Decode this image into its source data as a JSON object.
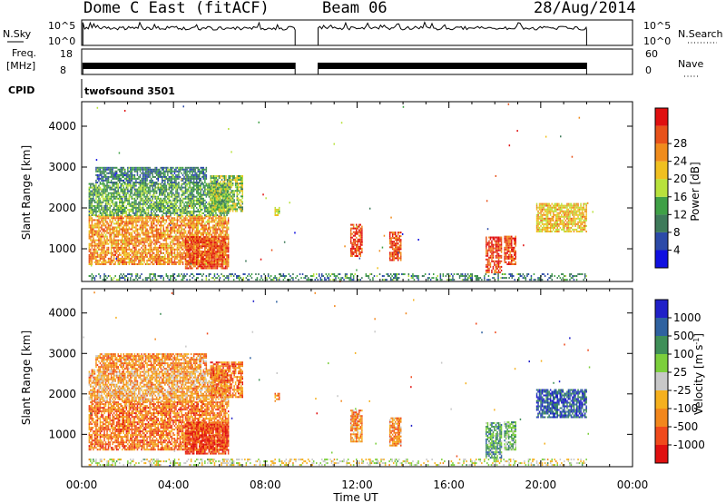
{
  "header": {
    "station": "Dome C East (fitACF)",
    "beam": "Beam 06",
    "date": "28/Aug/2014"
  },
  "aux": {
    "nsky_label": "N.Sky",
    "nsky_ticks": [
      "10^5",
      "10^0"
    ],
    "freq_label_1": "Freq.",
    "freq_label_2": "[MHz]",
    "freq_ticks": [
      "18",
      "8"
    ],
    "nsearch_label": "N.Search",
    "nsearch_ticks": [
      "10^5",
      "10^0"
    ],
    "nave_label": "Nave",
    "nave_ticks": [
      "60",
      "0"
    ],
    "cpid_label": "CPID",
    "cpid_value": "twofsound 3501"
  },
  "xaxis": {
    "title": "Time UT",
    "ticks": [
      "00:00",
      "04:00",
      "08:00",
      "12:00",
      "16:00",
      "20:00",
      "00:00"
    ]
  },
  "colors": {
    "power_scale": [
      "#1010e0",
      "#2c4aa8",
      "#3e7a5a",
      "#3fa046",
      "#b8e23c",
      "#f0c020",
      "#f08c1c",
      "#e8521a",
      "#e01010"
    ],
    "velocity_scale": [
      "#e01010",
      "#f04a1c",
      "#f2871c",
      "#f5b01e",
      "#c8c8c8",
      "#7ccf3c",
      "#3f8f58",
      "#2f62a0",
      "#2020c8"
    ]
  },
  "chart_data": [
    {
      "type": "heatmap",
      "panel": "power",
      "xlabel": "",
      "ylabel": "Slant Range [km]",
      "xlim": [
        0,
        24
      ],
      "ylim": [
        200,
        4600
      ],
      "yticks": [
        1000,
        2000,
        3000,
        4000
      ],
      "colorbar": {
        "label": "Power [dB]",
        "ticks": [
          "4",
          "8",
          "12",
          "16",
          "20",
          "24",
          "28"
        ],
        "range": [
          0,
          30
        ]
      },
      "regions": [
        {
          "t": [
            0.3,
            6.4
          ],
          "r": [
            600,
            1800
          ],
          "level": 0.72
        },
        {
          "t": [
            0.3,
            6.4
          ],
          "r": [
            1800,
            2600
          ],
          "level": 0.38
        },
        {
          "t": [
            0.6,
            5.4
          ],
          "r": [
            2600,
            3000
          ],
          "level": 0.28
        },
        {
          "t": [
            4.5,
            6.4
          ],
          "r": [
            500,
            1300
          ],
          "level": 0.85
        },
        {
          "t": [
            5.6,
            7.0
          ],
          "r": [
            1900,
            2800
          ],
          "level": 0.45
        },
        {
          "t": [
            8.4,
            8.6
          ],
          "r": [
            1800,
            2000
          ],
          "level": 0.5
        },
        {
          "t": [
            11.7,
            12.2
          ],
          "r": [
            800,
            1600
          ],
          "level": 0.9
        },
        {
          "t": [
            13.4,
            13.9
          ],
          "r": [
            700,
            1400
          ],
          "level": 0.85
        },
        {
          "t": [
            17.6,
            18.3
          ],
          "r": [
            400,
            1300
          ],
          "level": 0.88
        },
        {
          "t": [
            18.4,
            18.9
          ],
          "r": [
            600,
            1300
          ],
          "level": 0.85
        },
        {
          "t": [
            19.8,
            22.0
          ],
          "r": [
            1400,
            2100
          ],
          "level": 0.62
        },
        {
          "t": [
            0.3,
            22.0
          ],
          "r": [
            220,
            400
          ],
          "level": 0.3
        }
      ]
    },
    {
      "type": "heatmap",
      "panel": "velocity",
      "xlabel": "Time UT",
      "ylabel": "Slant Range [km]",
      "xlim": [
        0,
        24
      ],
      "ylim": [
        200,
        4600
      ],
      "yticks": [
        1000,
        2000,
        3000,
        4000
      ],
      "colorbar": {
        "label": "Velocity [m s^-1]",
        "ticks": [
          "1000",
          "500",
          "100",
          "25",
          "-25",
          "-100",
          "-500",
          "-1000"
        ],
        "range": [
          -1000,
          1000
        ]
      },
      "regions": [
        {
          "t": [
            0.3,
            6.4
          ],
          "r": [
            600,
            1800
          ],
          "level": 0.25
        },
        {
          "t": [
            0.3,
            6.4
          ],
          "r": [
            1800,
            2600
          ],
          "level": 0.35
        },
        {
          "t": [
            0.6,
            5.4
          ],
          "r": [
            2600,
            3000
          ],
          "level": 0.3
        },
        {
          "t": [
            4.5,
            6.4
          ],
          "r": [
            500,
            1300
          ],
          "level": 0.12
        },
        {
          "t": [
            5.6,
            7.0
          ],
          "r": [
            1900,
            2800
          ],
          "level": 0.25
        },
        {
          "t": [
            8.4,
            8.6
          ],
          "r": [
            1800,
            2000
          ],
          "level": 0.3
        },
        {
          "t": [
            11.7,
            12.2
          ],
          "r": [
            800,
            1600
          ],
          "level": 0.3
        },
        {
          "t": [
            13.4,
            13.9
          ],
          "r": [
            700,
            1400
          ],
          "level": 0.3
        },
        {
          "t": [
            17.6,
            18.3
          ],
          "r": [
            400,
            1300
          ],
          "level": 0.7
        },
        {
          "t": [
            18.4,
            18.9
          ],
          "r": [
            600,
            1300
          ],
          "level": 0.65
        },
        {
          "t": [
            19.8,
            22.0
          ],
          "r": [
            1400,
            2100
          ],
          "level": 0.85
        },
        {
          "t": [
            0.3,
            22.0
          ],
          "r": [
            220,
            400
          ],
          "level": 0.5
        }
      ]
    }
  ]
}
